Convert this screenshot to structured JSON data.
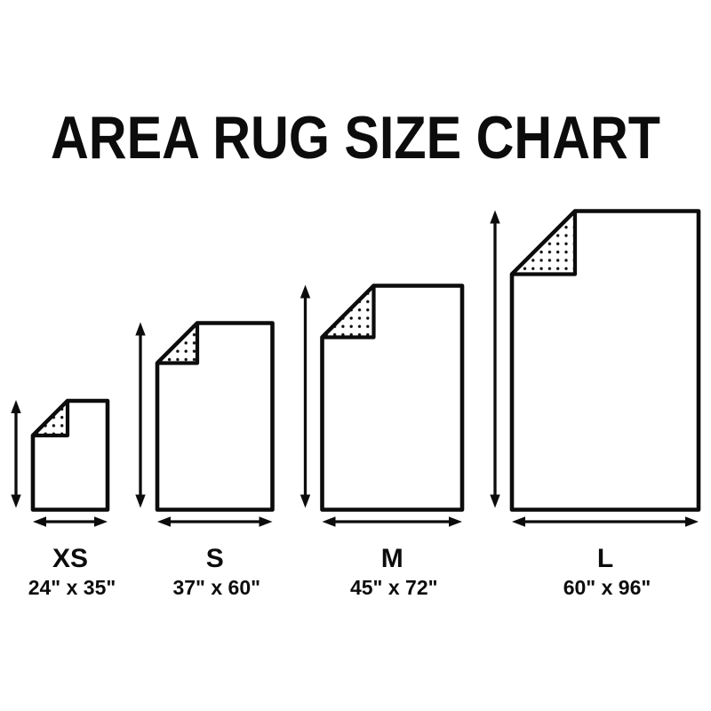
{
  "title": "AREA RUG SIZE CHART",
  "colors": {
    "ink": "#0c0c0c",
    "background": "#ffffff"
  },
  "icons": {
    "height_arrow": "double-headed-vertical-arrow",
    "width_arrow": "double-headed-horizontal-arrow",
    "folded_corner": "rug-folded-corner-dotted"
  },
  "sizes": [
    {
      "id": "xs",
      "label": "XS",
      "width_in": 24,
      "height_in": 35,
      "dimensions": "24\" x 35\""
    },
    {
      "id": "s",
      "label": "S",
      "width_in": 37,
      "height_in": 60,
      "dimensions": "37\" x 60\""
    },
    {
      "id": "m",
      "label": "M",
      "width_in": 45,
      "height_in": 72,
      "dimensions": "45\" x 72\""
    },
    {
      "id": "l",
      "label": "L",
      "width_in": 60,
      "height_in": 96,
      "dimensions": "60\" x 96\""
    }
  ]
}
